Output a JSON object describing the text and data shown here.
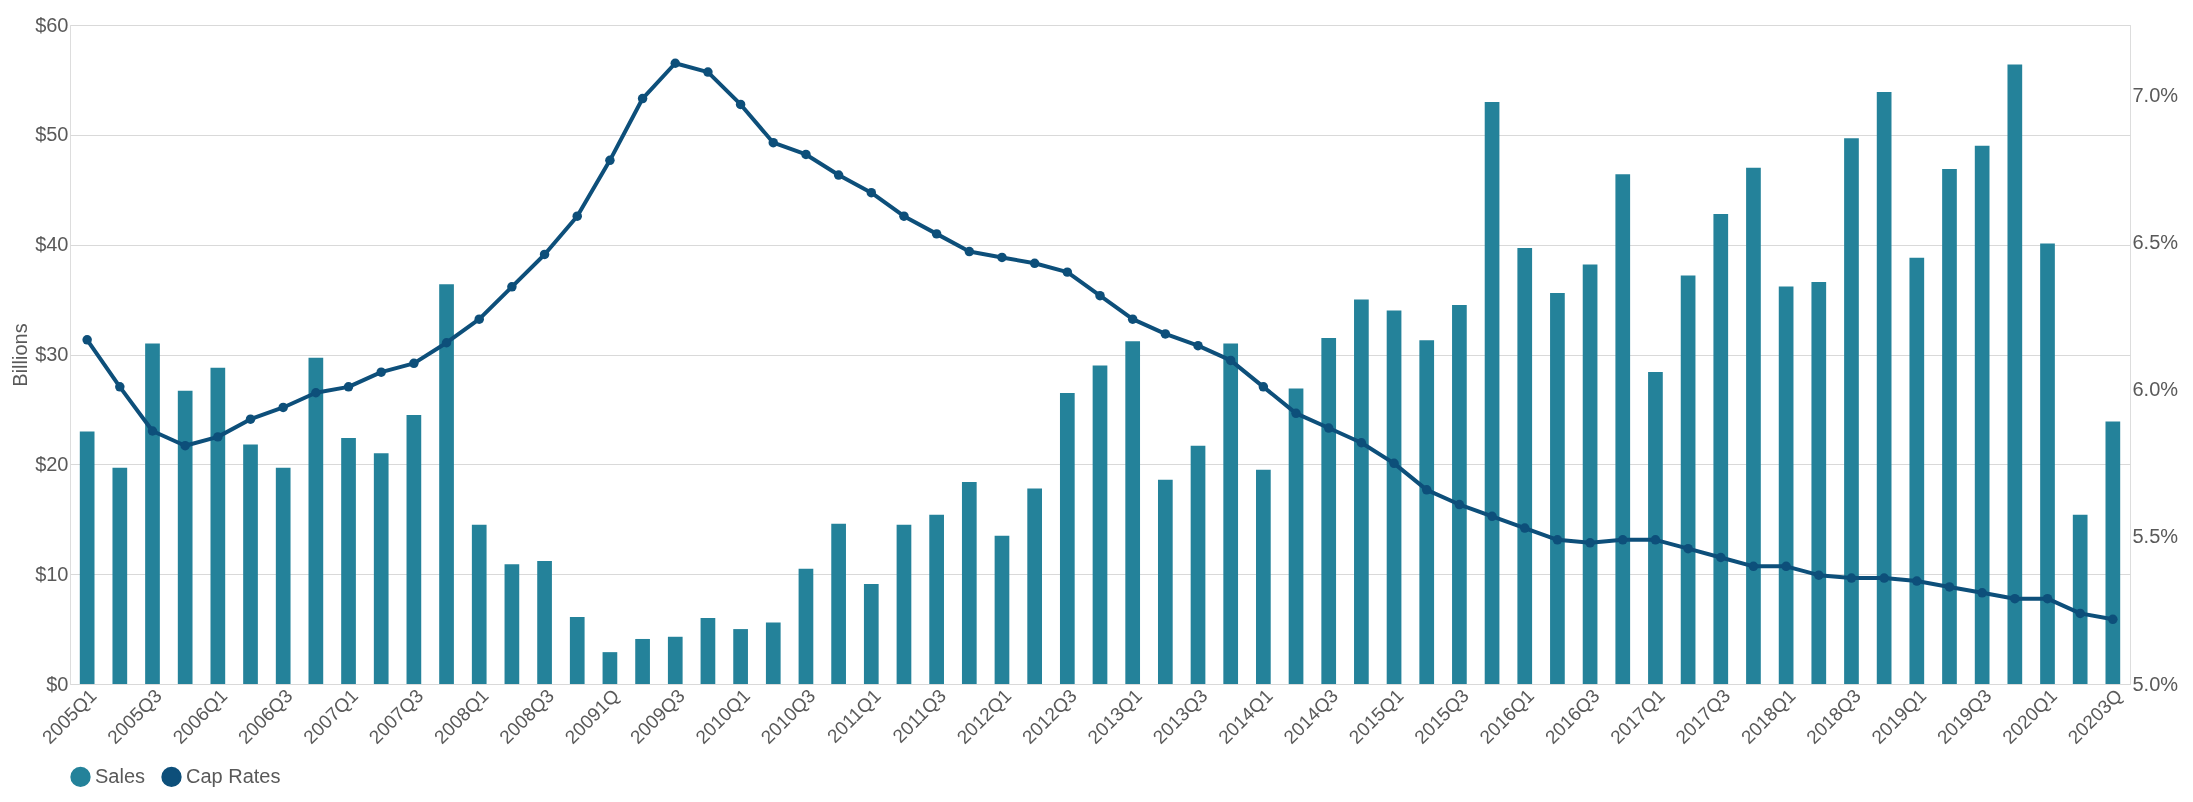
{
  "chart_data": {
    "type": "bar",
    "ylabel": "Billions",
    "categories": [
      "2005Q1",
      null,
      "2005Q3",
      null,
      "2006Q1",
      null,
      "2006Q3",
      null,
      "2007Q1",
      null,
      "2007Q3",
      null,
      "2008Q1",
      null,
      "2008Q3",
      null,
      "20091Q",
      null,
      "2009Q3",
      null,
      "2010Q1",
      null,
      "2010Q3",
      null,
      "2011Q1",
      null,
      "2011Q3",
      null,
      "2012Q1",
      null,
      "2012Q3",
      null,
      "2013Q1",
      null,
      "2013Q3",
      null,
      "2014Q1",
      null,
      "2014Q3",
      null,
      "2015Q1",
      null,
      "2015Q3",
      null,
      "2016Q1",
      null,
      "2016Q3",
      null,
      "2017Q1",
      null,
      "2017Q3",
      null,
      "2018Q1",
      null,
      "2018Q3",
      null,
      "2019Q1",
      null,
      "2019Q3",
      null,
      "2020Q1",
      null,
      "20203Q"
    ],
    "series": [
      {
        "name": "Sales",
        "color": "#24829a",
        "values": [
          23,
          19.7,
          31,
          26.7,
          28.8,
          21.8,
          19.7,
          29.7,
          22.4,
          21,
          24.5,
          36.4,
          14.5,
          10.9,
          11.2,
          6.1,
          2.9,
          4.1,
          4.3,
          6,
          5,
          5.6,
          10.5,
          14.6,
          9.1,
          14.5,
          15.4,
          18.4,
          13.5,
          17.8,
          26.5,
          29,
          31.2,
          18.6,
          21.7,
          31,
          19.5,
          26.9,
          31.5,
          35,
          34,
          31.3,
          34.5,
          53,
          39.7,
          35.6,
          38.2,
          46.4,
          28.4,
          37.2,
          42.8,
          47,
          36.2,
          36.6,
          49.7,
          53.9,
          38.8,
          46.9,
          49,
          56.4,
          40.1,
          15.4,
          23.9
        ]
      },
      {
        "name": "Cap Rates",
        "type": "line",
        "axis": "y2",
        "marker": "circle",
        "color": "#0d4f7a",
        "values": [
          6.17,
          6.01,
          5.86,
          5.81,
          5.84,
          5.9,
          5.94,
          5.99,
          6.01,
          6.06,
          6.09,
          6.16,
          6.24,
          6.35,
          6.46,
          6.59,
          6.78,
          6.99,
          7.11,
          7.08,
          6.97,
          6.84,
          6.8,
          6.73,
          6.67,
          6.59,
          6.53,
          6.47,
          6.45,
          6.43,
          6.4,
          6.32,
          6.24,
          6.19,
          6.15,
          6.1,
          6.01,
          5.92,
          5.87,
          5.82,
          5.75,
          5.66,
          5.61,
          5.57,
          5.53,
          5.49,
          5.48,
          5.49,
          5.49,
          5.46,
          5.43,
          5.4,
          5.4,
          5.37,
          5.36,
          5.36,
          5.35,
          5.33,
          5.31,
          5.29,
          5.29,
          5.24,
          5.22
        ]
      }
    ],
    "ylim": [
      0,
      60
    ],
    "yticks": [
      {
        "value": 0,
        "label": "$0"
      },
      {
        "value": 10,
        "label": "$10"
      },
      {
        "value": 20,
        "label": "$20"
      },
      {
        "value": 30,
        "label": "$30"
      },
      {
        "value": 40,
        "label": "$40"
      },
      {
        "value": 50,
        "label": "$50"
      },
      {
        "value": 60,
        "label": "$60"
      }
    ],
    "y2lim": [
      5.0,
      7.24
    ],
    "y2ticks": [
      {
        "value": 5.0,
        "label": "5.0%"
      },
      {
        "value": 5.5,
        "label": "5.5%"
      },
      {
        "value": 6.0,
        "label": "6.0%"
      },
      {
        "value": 6.5,
        "label": "6.5%"
      },
      {
        "value": 7.0,
        "label": "7.0%"
      }
    ],
    "grid": "y",
    "legend": "bottom"
  }
}
